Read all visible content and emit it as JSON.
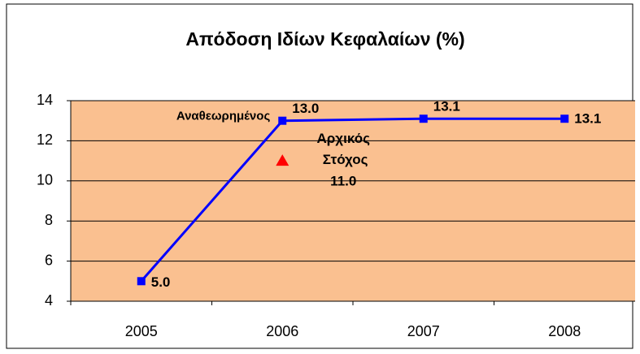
{
  "chart_data": {
    "type": "line",
    "title": "Απόδοση Ιδίων Κεφαλαίων (%)",
    "categories": [
      "2005",
      "2006",
      "2007",
      "2008"
    ],
    "series": [
      {
        "name": "Αναθεωρημένος",
        "color": "#0000ff",
        "marker": "square",
        "values": [
          5,
          13,
          13.1,
          13.1
        ],
        "value_labels": [
          "5.0",
          "13.0",
          "13.1",
          "13.1"
        ]
      },
      {
        "name": "Αρχικός Στόχος",
        "color": "#ff0000",
        "marker": "triangle",
        "values": [
          null,
          11,
          null,
          null
        ],
        "value_labels": [
          null,
          "11.0",
          null,
          null
        ]
      }
    ],
    "ylim": [
      4,
      14
    ],
    "yticks": [
      4,
      6,
      8,
      10,
      12,
      14
    ],
    "grid": true,
    "plot_background": "#fac090"
  }
}
